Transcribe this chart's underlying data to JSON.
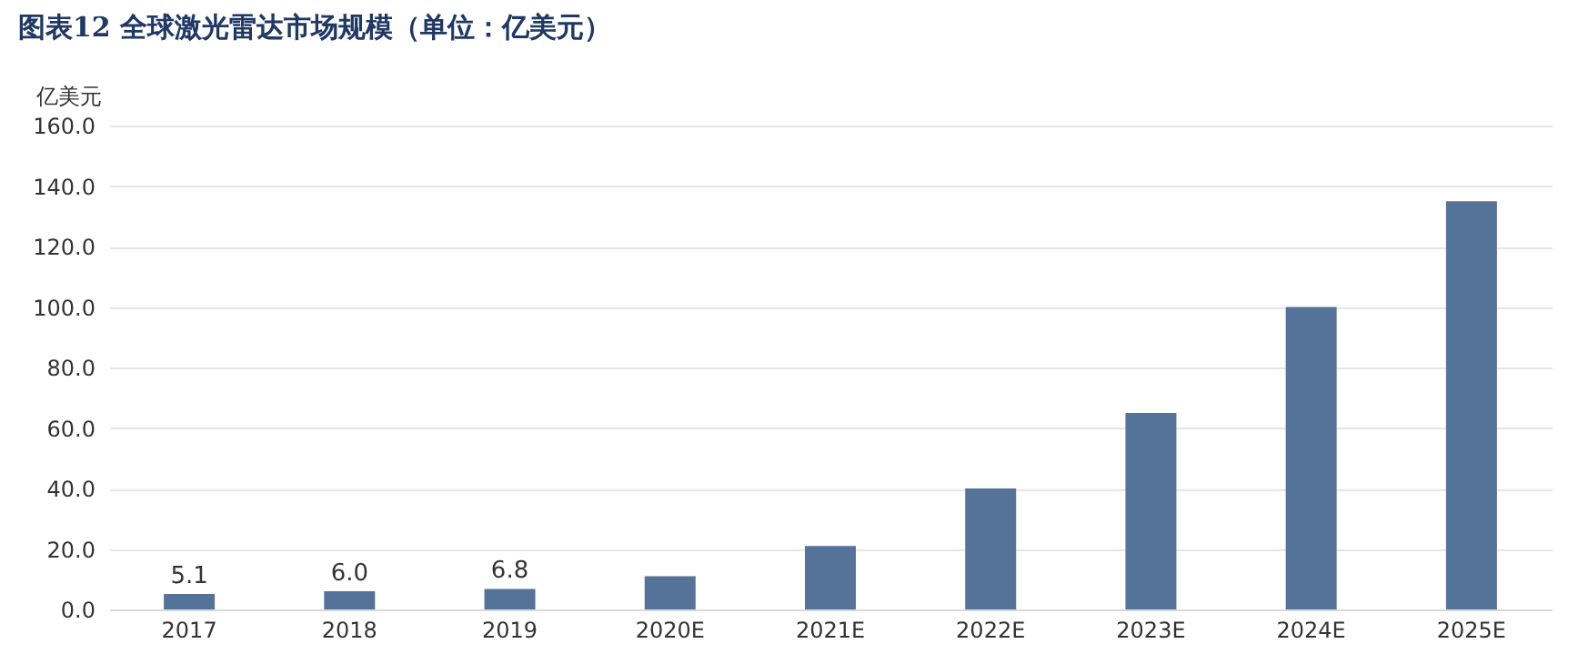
{
  "chart_data": {
    "type": "bar",
    "title": "图表12   全球激光雷达市场规模（单位：亿美元）",
    "ylabel": "亿美元",
    "categories": [
      "2017",
      "2018",
      "2019",
      "2020E",
      "2021E",
      "2022E",
      "2023E",
      "2024E",
      "2025E"
    ],
    "values": [
      5.1,
      6.0,
      6.8,
      11,
      21,
      40,
      65,
      100,
      135
    ],
    "value_labels": [
      "5.1",
      "6.0",
      "6.8",
      null,
      null,
      null,
      null,
      null,
      null
    ],
    "color": "#557398",
    "ylim": [
      0,
      160
    ],
    "yticks": [
      {
        "value": 0,
        "label": "0.0"
      },
      {
        "value": 20,
        "label": "20.0"
      },
      {
        "value": 40,
        "label": "40.0"
      },
      {
        "value": 60,
        "label": "60.0"
      },
      {
        "value": 80,
        "label": "80.0"
      },
      {
        "value": 100,
        "label": "100.0"
      },
      {
        "value": 120,
        "label": "120.0"
      },
      {
        "value": 140,
        "label": "140.0"
      },
      {
        "value": 160,
        "label": "160.0"
      }
    ],
    "grid": "y"
  }
}
